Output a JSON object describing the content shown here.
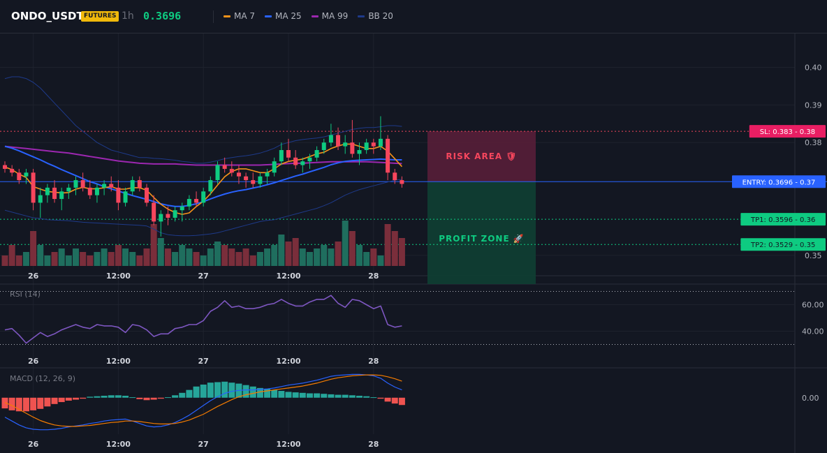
{
  "header": {
    "symbol": "ONDO_USDT",
    "badge": "FUTURES",
    "interval": "1h",
    "price": "0.3696",
    "indicators": [
      {
        "label": "MA 7",
        "color": "#f7931a"
      },
      {
        "label": "MA 25",
        "color": "#2962ff"
      },
      {
        "label": "MA 99",
        "color": "#9c27b0"
      },
      {
        "label": "BB 20",
        "color": "#1e3a8a"
      }
    ]
  },
  "colors": {
    "up": "#0ecb81",
    "down": "#f6465d",
    "up_vol": "#1f6e5e",
    "down_vol": "#7a2e3b",
    "ma7": "#f7931a",
    "ma25": "#2962ff",
    "ma99": "#9c27b0",
    "bb": "#1e3a8a",
    "sl": "#f6465d",
    "entry": "#2962ff",
    "tp": "#0ecb81",
    "rsi": "#7e57c2",
    "macd": "#2962ff",
    "signal": "#f57c00"
  },
  "chart_data": [
    {
      "type": "candlestick",
      "ylim": [
        0.347,
        0.409
      ],
      "y_ticks": [
        "0.40",
        "0.39",
        "0.38",
        "0.35"
      ],
      "y_tick_values": [
        0.4,
        0.39,
        0.38,
        0.35
      ],
      "x_ticks": [
        "26",
        "12:00",
        "27",
        "12:00",
        "28"
      ],
      "x_tick_index": [
        4,
        16,
        28,
        40,
        52
      ],
      "candles": [
        [
          0.374,
          0.375,
          0.372,
          0.373
        ],
        [
          0.373,
          0.374,
          0.371,
          0.372
        ],
        [
          0.372,
          0.373,
          0.369,
          0.37
        ],
        [
          0.371,
          0.373,
          0.369,
          0.372
        ],
        [
          0.372,
          0.373,
          0.362,
          0.364
        ],
        [
          0.364,
          0.368,
          0.36,
          0.366
        ],
        [
          0.366,
          0.369,
          0.364,
          0.368
        ],
        [
          0.368,
          0.37,
          0.364,
          0.365
        ],
        [
          0.365,
          0.368,
          0.362,
          0.367
        ],
        [
          0.367,
          0.369,
          0.365,
          0.368
        ],
        [
          0.368,
          0.371,
          0.366,
          0.37
        ],
        [
          0.37,
          0.372,
          0.367,
          0.368
        ],
        [
          0.368,
          0.37,
          0.365,
          0.366
        ],
        [
          0.366,
          0.369,
          0.364,
          0.368
        ],
        [
          0.368,
          0.37,
          0.366,
          0.369
        ],
        [
          0.369,
          0.371,
          0.367,
          0.368
        ],
        [
          0.368,
          0.37,
          0.362,
          0.364
        ],
        [
          0.364,
          0.368,
          0.363,
          0.367
        ],
        [
          0.367,
          0.371,
          0.366,
          0.37
        ],
        [
          0.37,
          0.371,
          0.367,
          0.368
        ],
        [
          0.368,
          0.369,
          0.363,
          0.364
        ],
        [
          0.364,
          0.366,
          0.358,
          0.359
        ],
        [
          0.359,
          0.362,
          0.355,
          0.361
        ],
        [
          0.361,
          0.363,
          0.358,
          0.36
        ],
        [
          0.36,
          0.363,
          0.359,
          0.362
        ],
        [
          0.362,
          0.364,
          0.359,
          0.363
        ],
        [
          0.363,
          0.366,
          0.362,
          0.365
        ],
        [
          0.365,
          0.367,
          0.363,
          0.364
        ],
        [
          0.364,
          0.368,
          0.363,
          0.367
        ],
        [
          0.367,
          0.371,
          0.366,
          0.37
        ],
        [
          0.37,
          0.375,
          0.369,
          0.374
        ],
        [
          0.374,
          0.376,
          0.372,
          0.373
        ],
        [
          0.373,
          0.375,
          0.371,
          0.372
        ],
        [
          0.372,
          0.374,
          0.369,
          0.371
        ],
        [
          0.371,
          0.372,
          0.368,
          0.37
        ],
        [
          0.37,
          0.372,
          0.368,
          0.369
        ],
        [
          0.369,
          0.372,
          0.368,
          0.371
        ],
        [
          0.371,
          0.373,
          0.369,
          0.372
        ],
        [
          0.372,
          0.376,
          0.371,
          0.375
        ],
        [
          0.375,
          0.38,
          0.374,
          0.378
        ],
        [
          0.378,
          0.381,
          0.375,
          0.376
        ],
        [
          0.376,
          0.378,
          0.373,
          0.374
        ],
        [
          0.374,
          0.376,
          0.372,
          0.375
        ],
        [
          0.375,
          0.377,
          0.373,
          0.376
        ],
        [
          0.376,
          0.379,
          0.375,
          0.378
        ],
        [
          0.378,
          0.381,
          0.377,
          0.38
        ],
        [
          0.38,
          0.385,
          0.379,
          0.382
        ],
        [
          0.382,
          0.384,
          0.378,
          0.379
        ],
        [
          0.379,
          0.382,
          0.377,
          0.38
        ],
        [
          0.38,
          0.386,
          0.376,
          0.377
        ],
        [
          0.377,
          0.38,
          0.374,
          0.378
        ],
        [
          0.378,
          0.381,
          0.377,
          0.38
        ],
        [
          0.38,
          0.381,
          0.377,
          0.379
        ],
        [
          0.379,
          0.387,
          0.378,
          0.381
        ],
        [
          0.381,
          0.382,
          0.37,
          0.372
        ],
        [
          0.372,
          0.373,
          0.369,
          0.37
        ],
        [
          0.37,
          0.371,
          0.368,
          0.369
        ]
      ],
      "volume": [
        3,
        6,
        3,
        4,
        10,
        6,
        3,
        4,
        5,
        3,
        5,
        4,
        3,
        4,
        5,
        4,
        6,
        5,
        4,
        3,
        5,
        12,
        8,
        5,
        4,
        6,
        5,
        4,
        3,
        5,
        7,
        6,
        5,
        4,
        5,
        3,
        4,
        5,
        6,
        9,
        7,
        8,
        5,
        4,
        5,
        6,
        5,
        7,
        13,
        10,
        6,
        4,
        5,
        3,
        12,
        10,
        8
      ],
      "ma7": [
        0.3735,
        0.3728,
        0.3716,
        0.3707,
        0.3683,
        0.3676,
        0.367,
        0.3668,
        0.3666,
        0.3667,
        0.3676,
        0.3681,
        0.3677,
        0.3677,
        0.368,
        0.3683,
        0.3676,
        0.3676,
        0.368,
        0.368,
        0.3673,
        0.3654,
        0.3636,
        0.3623,
        0.3614,
        0.3609,
        0.3613,
        0.363,
        0.3644,
        0.3664,
        0.3687,
        0.3709,
        0.3723,
        0.373,
        0.373,
        0.3725,
        0.372,
        0.372,
        0.373,
        0.3743,
        0.375,
        0.3753,
        0.3756,
        0.3763,
        0.377,
        0.3774,
        0.3784,
        0.3791,
        0.3796,
        0.3796,
        0.379,
        0.3784,
        0.3784,
        0.379,
        0.3777,
        0.3757,
        0.3736
      ],
      "ma25": [
        0.379,
        0.3785,
        0.3778,
        0.377,
        0.3762,
        0.3754,
        0.3745,
        0.3737,
        0.3728,
        0.372,
        0.3712,
        0.3704,
        0.3696,
        0.369,
        0.3683,
        0.3677,
        0.3671,
        0.3665,
        0.3659,
        0.3654,
        0.3649,
        0.3643,
        0.3637,
        0.3633,
        0.363,
        0.363,
        0.3633,
        0.3637,
        0.3643,
        0.365,
        0.3657,
        0.3663,
        0.3668,
        0.3672,
        0.3675,
        0.3679,
        0.3683,
        0.3688,
        0.3693,
        0.3699,
        0.3705,
        0.3711,
        0.3716,
        0.3722,
        0.3728,
        0.3734,
        0.3741,
        0.3746,
        0.375,
        0.3752,
        0.3753,
        0.3754,
        0.3755,
        0.3756,
        0.3755,
        0.3754,
        0.3754
      ],
      "ma99": [
        0.379,
        0.3788,
        0.3786,
        0.3784,
        0.3782,
        0.378,
        0.3778,
        0.3776,
        0.3774,
        0.3772,
        0.3769,
        0.3766,
        0.3763,
        0.376,
        0.3757,
        0.3754,
        0.3751,
        0.3749,
        0.3747,
        0.3745,
        0.3744,
        0.3743,
        0.3743,
        0.3743,
        0.3743,
        0.3742,
        0.3741,
        0.374,
        0.374,
        0.374,
        0.374,
        0.374,
        0.374,
        0.374,
        0.374,
        0.374,
        0.374,
        0.3741,
        0.3742,
        0.3743,
        0.3744,
        0.3745,
        0.3745,
        0.3746,
        0.3747,
        0.3748,
        0.3749,
        0.3749,
        0.3749,
        0.3749,
        0.3749,
        0.3749,
        0.3748,
        0.3747,
        0.3746,
        0.3745,
        0.3744
      ],
      "bb_upper": [
        0.397,
        0.3975,
        0.3975,
        0.397,
        0.396,
        0.3945,
        0.3925,
        0.3905,
        0.3885,
        0.3865,
        0.3845,
        0.383,
        0.3815,
        0.38,
        0.379,
        0.378,
        0.3775,
        0.377,
        0.3765,
        0.376,
        0.376,
        0.3758,
        0.3757,
        0.3755,
        0.3753,
        0.375,
        0.3748,
        0.3745,
        0.3745,
        0.3748,
        0.3752,
        0.3757,
        0.376,
        0.3763,
        0.3765,
        0.3768,
        0.3772,
        0.3778,
        0.3785,
        0.3795,
        0.38,
        0.3805,
        0.3808,
        0.381,
        0.3812,
        0.3815,
        0.382,
        0.3825,
        0.383,
        0.3835,
        0.3838,
        0.384,
        0.384,
        0.3842,
        0.3845,
        0.3845,
        0.3843
      ],
      "bb_lower": [
        0.362,
        0.3615,
        0.361,
        0.3605,
        0.36,
        0.3598,
        0.3595,
        0.3594,
        0.3593,
        0.3592,
        0.359,
        0.3588,
        0.3587,
        0.3586,
        0.3585,
        0.3584,
        0.3583,
        0.3582,
        0.3581,
        0.358,
        0.3578,
        0.357,
        0.356,
        0.3555,
        0.3553,
        0.3552,
        0.3552,
        0.3553,
        0.3555,
        0.3557,
        0.356,
        0.3565,
        0.357,
        0.3575,
        0.358,
        0.3585,
        0.359,
        0.3593,
        0.3595,
        0.36,
        0.3605,
        0.361,
        0.3615,
        0.362,
        0.3625,
        0.3632,
        0.364,
        0.365,
        0.366,
        0.3668,
        0.3675,
        0.368,
        0.3685,
        0.369,
        0.3695,
        0.37,
        0.3702
      ],
      "levels": {
        "sl": {
          "label": "SL: 0.383 - 0.38",
          "value": 0.383
        },
        "entry": {
          "label": "ENTRY: 0.3696 - 0.37",
          "value": 0.3696
        },
        "tp1": {
          "label": "TP1: 0.3596 - 0.36",
          "value": 0.3596
        },
        "tp2": {
          "label": "TP2: 0.3529 - 0.35",
          "value": 0.3529
        }
      },
      "zones": {
        "risk": "RISK AREA 🛡",
        "profit": "PROFIT ZONE 🚀"
      }
    },
    {
      "type": "line",
      "title": "RSI (14)",
      "ylim": [
        25,
        75
      ],
      "y_ticks": [
        "60.00",
        "40.00"
      ],
      "y_tick_values": [
        60,
        40
      ],
      "bands": [
        70,
        30
      ],
      "x_ticks": [
        "26",
        "12:00",
        "27",
        "12:00",
        "28"
      ],
      "values": [
        41,
        42,
        37,
        31,
        35,
        39,
        36,
        38,
        41,
        43,
        45,
        43,
        42,
        45,
        44,
        44,
        43,
        39,
        45,
        44,
        41,
        36,
        38,
        38,
        42,
        43,
        45,
        45,
        48,
        55,
        58,
        63,
        58,
        59,
        57,
        57,
        58,
        60,
        61,
        64,
        61,
        59,
        59,
        62,
        64,
        64,
        67,
        61,
        58,
        64,
        63,
        60,
        57,
        59,
        45,
        43,
        44
      ]
    },
    {
      "type": "histogram_line",
      "title": "MACD (12, 26, 9)",
      "ylim": [
        -0.0075,
        0.006
      ],
      "y_ticks": [
        "0.00"
      ],
      "y_tick_values": [
        0
      ],
      "x_ticks": [
        "26",
        "12:00",
        "27",
        "12:00",
        "28"
      ],
      "hist": [
        -2.2,
        -2.6,
        -2.8,
        -2.8,
        -2.6,
        -2.3,
        -1.8,
        -1.3,
        -0.9,
        -0.6,
        -0.4,
        -0.2,
        0.2,
        0.3,
        0.4,
        0.5,
        0.5,
        0.4,
        0.1,
        -0.3,
        -0.5,
        -0.4,
        -0.2,
        0.1,
        0.5,
        1.0,
        1.6,
        2.3,
        2.7,
        3.1,
        3.2,
        3.3,
        3.1,
        2.9,
        2.6,
        2.3,
        2.0,
        1.8,
        1.6,
        1.4,
        1.2,
        1.1,
        1.0,
        0.9,
        0.9,
        0.8,
        0.7,
        0.6,
        0.6,
        0.5,
        0.4,
        0.3,
        0.1,
        -0.2,
        -0.8,
        -1.2,
        -1.5
      ],
      "macd": [
        -4.0,
        -4.8,
        -5.6,
        -6.2,
        -6.5,
        -6.6,
        -6.6,
        -6.5,
        -6.3,
        -6.0,
        -5.8,
        -5.6,
        -5.3,
        -5.1,
        -4.8,
        -4.6,
        -4.5,
        -4.4,
        -4.8,
        -5.3,
        -5.8,
        -6.0,
        -5.9,
        -5.6,
        -5.1,
        -4.4,
        -3.6,
        -2.6,
        -1.6,
        -0.6,
        0.2,
        0.9,
        1.3,
        1.5,
        1.6,
        1.6,
        1.7,
        1.8,
        2.0,
        2.3,
        2.6,
        2.8,
        3.0,
        3.3,
        3.6,
        4.0,
        4.4,
        4.6,
        4.7,
        4.8,
        4.8,
        4.7,
        4.5,
        4.0,
        3.0,
        2.2,
        1.6
      ],
      "signal": [
        -1.0,
        -1.6,
        -2.4,
        -3.2,
        -4.0,
        -4.7,
        -5.2,
        -5.6,
        -5.8,
        -5.9,
        -5.9,
        -5.8,
        -5.7,
        -5.5,
        -5.3,
        -5.1,
        -5.0,
        -4.8,
        -4.8,
        -4.9,
        -5.1,
        -5.3,
        -5.4,
        -5.4,
        -5.3,
        -5.0,
        -4.6,
        -4.0,
        -3.4,
        -2.6,
        -1.8,
        -1.1,
        -0.4,
        0.2,
        0.6,
        0.9,
        1.2,
        1.4,
        1.6,
        1.8,
        2.0,
        2.2,
        2.4,
        2.7,
        3.0,
        3.4,
        3.8,
        4.1,
        4.3,
        4.5,
        4.6,
        4.7,
        4.7,
        4.6,
        4.3,
        3.9,
        3.4
      ]
    }
  ]
}
